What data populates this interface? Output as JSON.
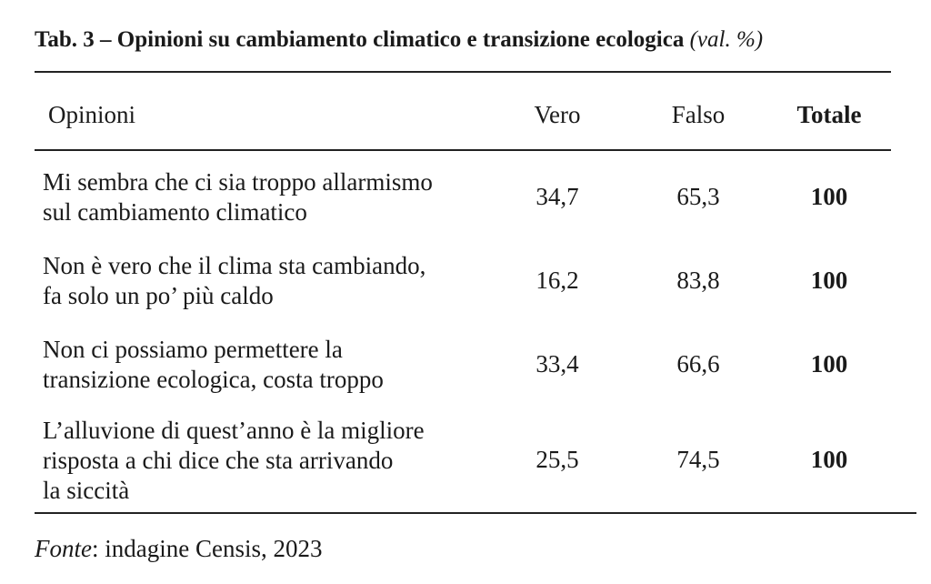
{
  "title": {
    "main": "Tab. 3 – Opinioni su cambiamento climatico e transizione ecologica",
    "unit": "(val. %)"
  },
  "table": {
    "columns": [
      "Opinioni",
      "Vero",
      "Falso",
      "Totale"
    ],
    "rows": [
      {
        "opinion_lines": [
          "Mi sembra che ci sia troppo allarmismo",
          "sul cambiamento climatico"
        ],
        "vero": "34,7",
        "falso": "65,3",
        "totale": "100"
      },
      {
        "opinion_lines": [
          "Non è vero che il clima sta cambiando,",
          "fa solo un po’ più caldo"
        ],
        "vero": "16,2",
        "falso": "83,8",
        "totale": "100"
      },
      {
        "opinion_lines": [
          "Non ci possiamo permettere la",
          "transizione ecologica, costa troppo"
        ],
        "vero": "33,4",
        "falso": "66,6",
        "totale": "100"
      },
      {
        "opinion_lines": [
          "L’alluvione di quest’anno è la migliore",
          "risposta a chi dice che sta arrivando",
          "la siccità"
        ],
        "vero": "25,5",
        "falso": "74,5",
        "totale": "100"
      }
    ]
  },
  "source": {
    "label": "Fonte",
    "text": ": indagine Censis, 2023"
  }
}
